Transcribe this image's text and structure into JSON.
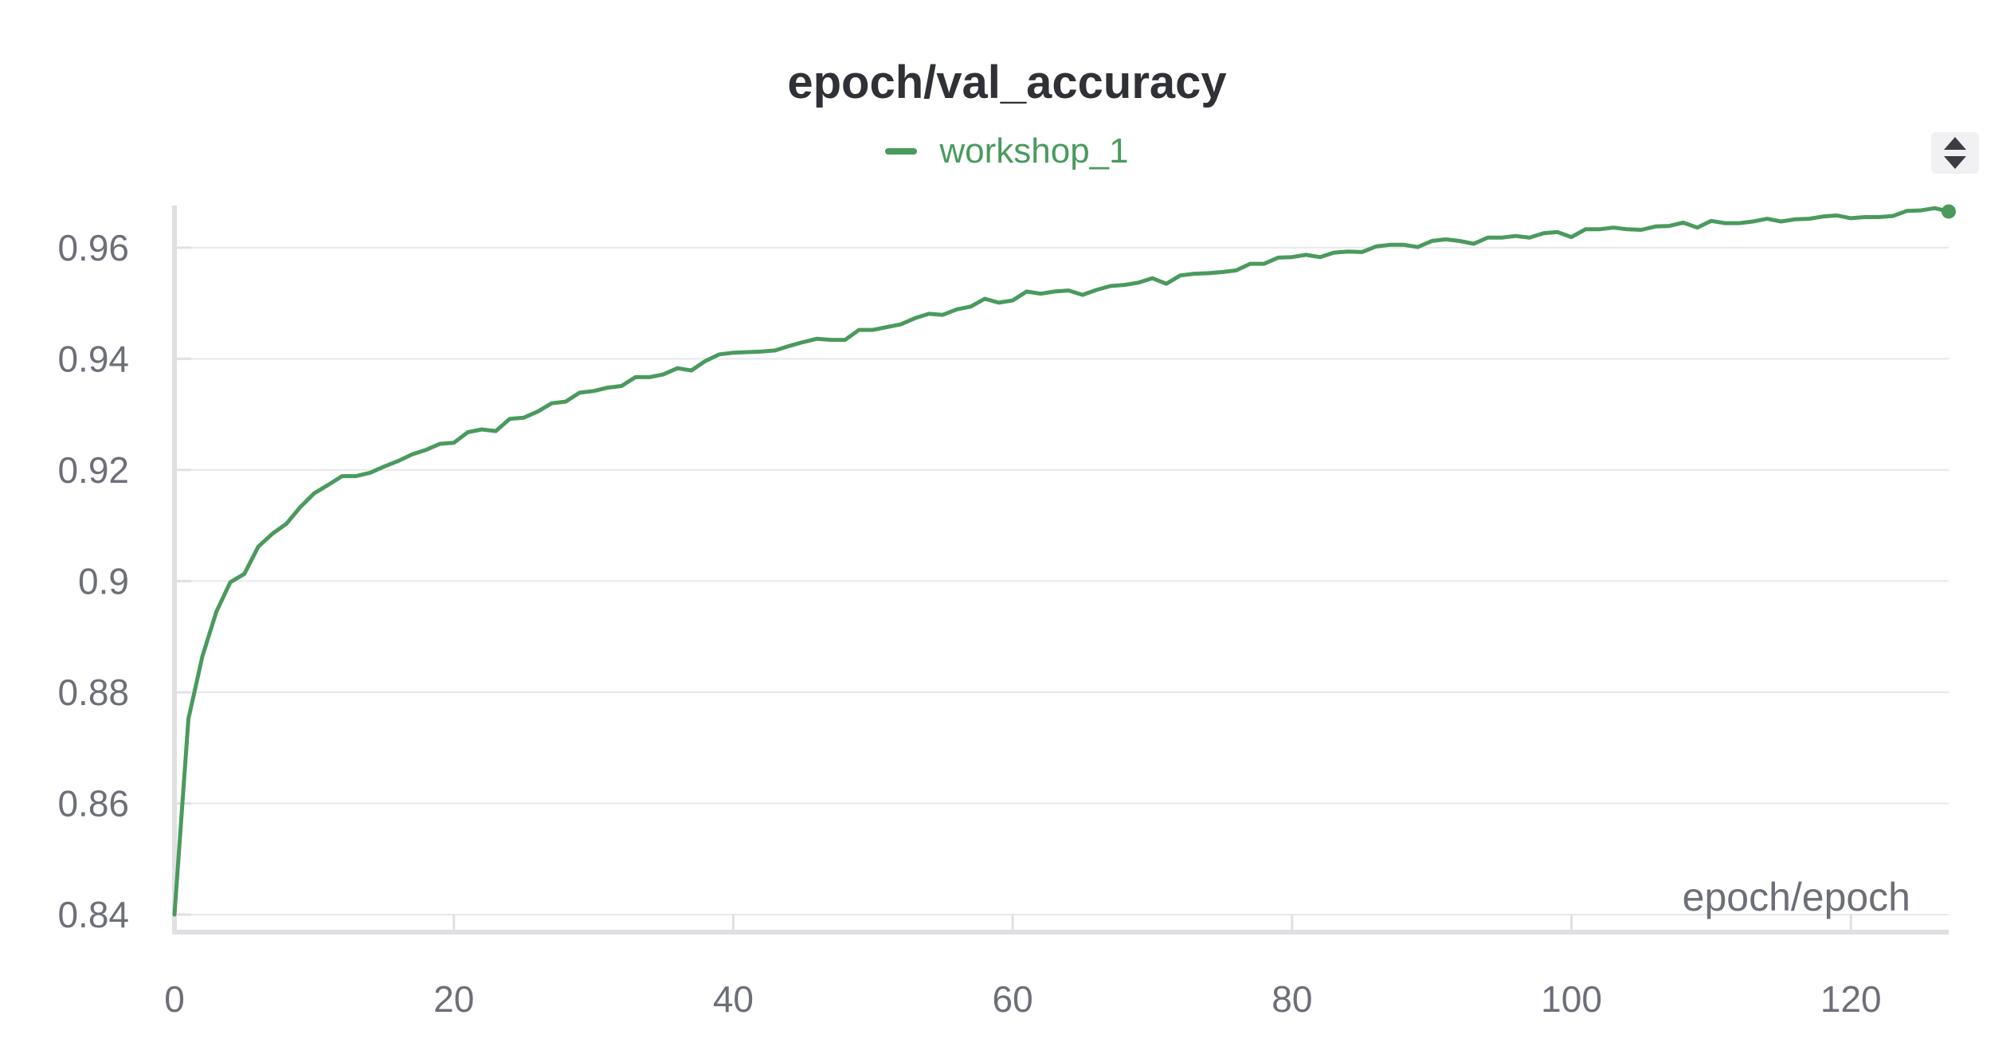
{
  "chart_data": {
    "type": "line",
    "title": "epoch/val_accuracy",
    "xlabel": "epoch/epoch",
    "ylabel": "",
    "xlim": [
      0,
      127
    ],
    "ylim": [
      0.84,
      0.967
    ],
    "x_ticks": [
      0,
      20,
      40,
      60,
      80,
      100,
      120
    ],
    "y_ticks": [
      0.84,
      0.86,
      0.88,
      0.9,
      0.92,
      0.94,
      0.96
    ],
    "y_tick_labels": [
      "0.84",
      "0.86",
      "0.88",
      "0.9",
      "0.92",
      "0.94",
      "0.96"
    ],
    "grid": true,
    "legend_position": "top-center",
    "series": [
      {
        "name": "workshop_1",
        "color": "#4a9a5d",
        "x": [
          0,
          1,
          2,
          3,
          4,
          5,
          6,
          7,
          8,
          9,
          10,
          11,
          12,
          13,
          14,
          15,
          16,
          17,
          18,
          19,
          20,
          21,
          22,
          23,
          24,
          25,
          26,
          27,
          28,
          29,
          30,
          31,
          32,
          33,
          34,
          35,
          36,
          37,
          38,
          39,
          40,
          41,
          42,
          43,
          44,
          45,
          46,
          47,
          48,
          49,
          50,
          51,
          52,
          53,
          54,
          55,
          56,
          57,
          58,
          59,
          60,
          61,
          62,
          63,
          64,
          65,
          66,
          67,
          68,
          69,
          70,
          71,
          72,
          73,
          74,
          75,
          76,
          77,
          78,
          79,
          80,
          81,
          82,
          83,
          84,
          85,
          86,
          87,
          88,
          89,
          90,
          91,
          92,
          93,
          94,
          95,
          96,
          97,
          98,
          99,
          100,
          101,
          102,
          103,
          104,
          105,
          106,
          107,
          108,
          109,
          110,
          111,
          112,
          113,
          114,
          115,
          116,
          117,
          118,
          119,
          120,
          121,
          122,
          123,
          124,
          125,
          126,
          127
        ],
        "values": [
          0.84,
          0.8752,
          0.8865,
          0.8945,
          0.8998,
          0.9013,
          0.9062,
          0.9085,
          0.9103,
          0.9133,
          0.9158,
          0.9173,
          0.9189,
          0.9189,
          0.9195,
          0.9206,
          0.9216,
          0.9228,
          0.9236,
          0.9247,
          0.9249,
          0.9268,
          0.9273,
          0.927,
          0.9292,
          0.9294,
          0.9305,
          0.932,
          0.9323,
          0.9339,
          0.9342,
          0.9348,
          0.9351,
          0.9367,
          0.9367,
          0.9372,
          0.9383,
          0.9379,
          0.9396,
          0.9408,
          0.9411,
          0.9412,
          0.9413,
          0.9415,
          0.9423,
          0.943,
          0.9436,
          0.9434,
          0.9434,
          0.9452,
          0.9452,
          0.9457,
          0.9462,
          0.9473,
          0.9481,
          0.9479,
          0.9489,
          0.9494,
          0.9508,
          0.9501,
          0.9505,
          0.9521,
          0.9517,
          0.9521,
          0.9523,
          0.9515,
          0.9524,
          0.9531,
          0.9533,
          0.9537,
          0.9545,
          0.9535,
          0.955,
          0.9553,
          0.9554,
          0.9556,
          0.9559,
          0.9571,
          0.9571,
          0.9582,
          0.9583,
          0.9587,
          0.9583,
          0.9591,
          0.9593,
          0.9592,
          0.9602,
          0.9605,
          0.9605,
          0.9601,
          0.9612,
          0.9615,
          0.9612,
          0.9607,
          0.9618,
          0.9618,
          0.9621,
          0.9618,
          0.9626,
          0.9628,
          0.9619,
          0.9633,
          0.9633,
          0.9636,
          0.9633,
          0.9632,
          0.9638,
          0.9639,
          0.9645,
          0.9636,
          0.9648,
          0.9644,
          0.9644,
          0.9647,
          0.9652,
          0.9647,
          0.9651,
          0.9652,
          0.9656,
          0.9658,
          0.9653,
          0.9655,
          0.9655,
          0.9657,
          0.9666,
          0.9667,
          0.9671,
          0.9665
        ]
      }
    ]
  }
}
